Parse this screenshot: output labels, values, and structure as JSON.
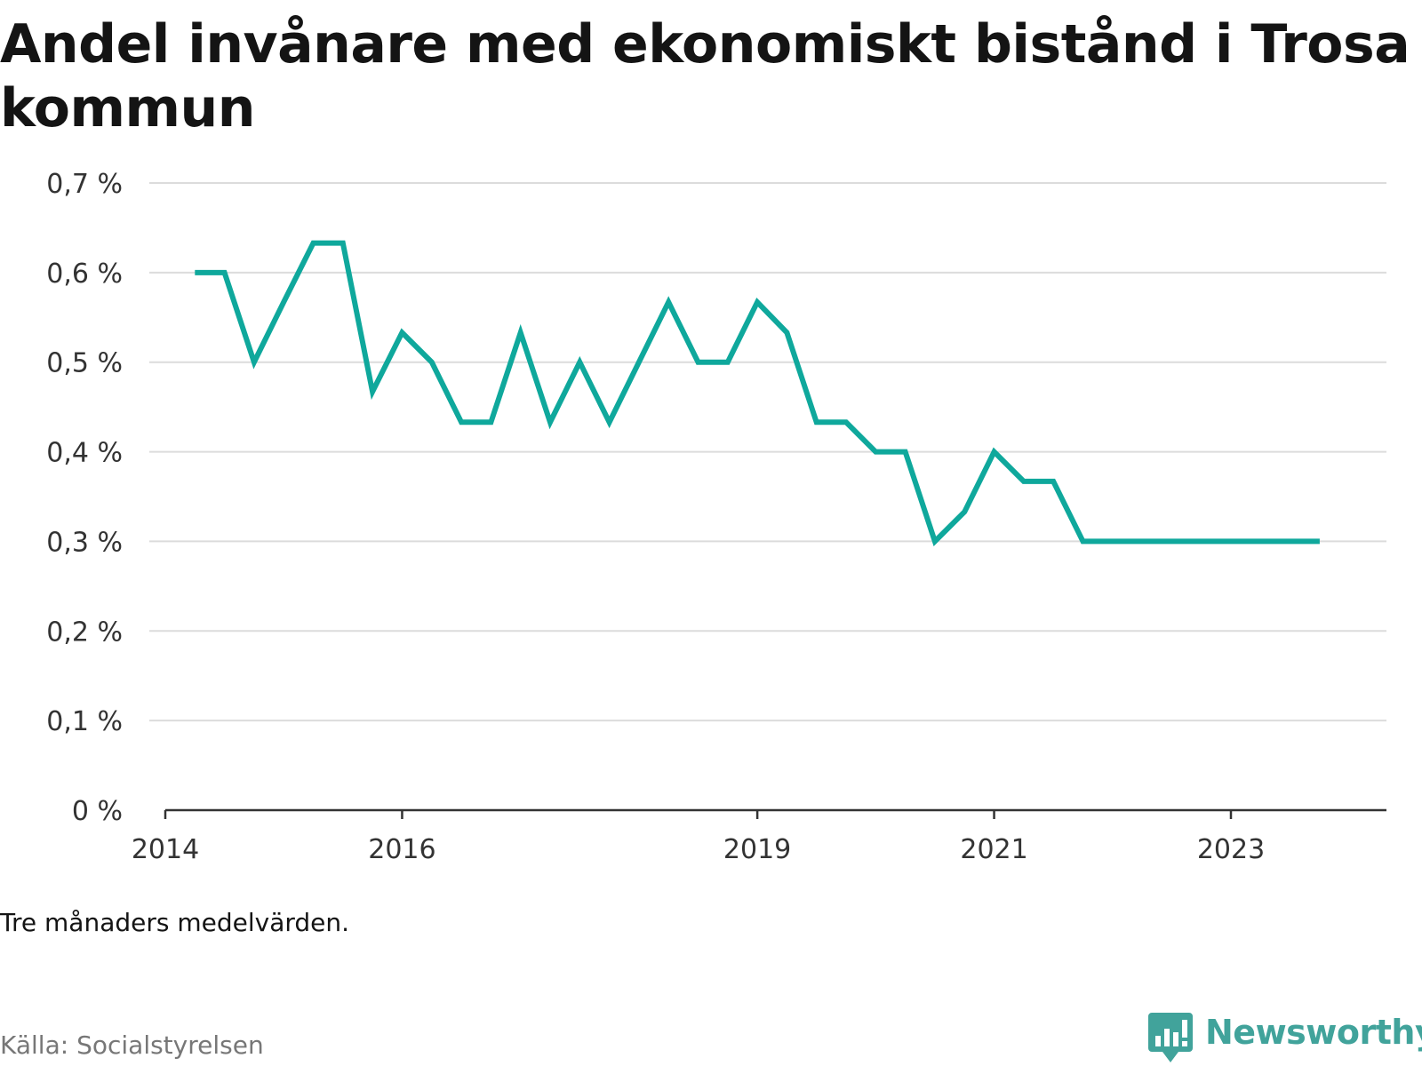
{
  "title": "Andel invånare med ekonomiskt bistånd i Trosa kommun",
  "note": "Tre månaders medelvärden.",
  "source": "Källa: Socialstyrelsen",
  "brand": {
    "name": "Newsworthy",
    "icon": "newsworthy-logo-icon",
    "color": "#41a39b"
  },
  "chart_data": {
    "type": "line",
    "line_color": "#0fa89c",
    "grid": true,
    "ylim": [
      0,
      0.7
    ],
    "y_ticks": [
      {
        "value": 0.0,
        "label": "0 %"
      },
      {
        "value": 0.1,
        "label": "0,1 %"
      },
      {
        "value": 0.2,
        "label": "0,2 %"
      },
      {
        "value": 0.3,
        "label": "0,3 %"
      },
      {
        "value": 0.4,
        "label": "0,4 %"
      },
      {
        "value": 0.5,
        "label": "0,5 %"
      },
      {
        "value": 0.6,
        "label": "0,6 %"
      },
      {
        "value": 0.7,
        "label": "0,7 %"
      }
    ],
    "x_ticks": [
      {
        "value": "2014-01",
        "label": "2014"
      },
      {
        "value": "2016-01",
        "label": "2016"
      },
      {
        "value": "2019-01",
        "label": "2019"
      },
      {
        "value": "2021-01",
        "label": "2021"
      },
      {
        "value": "2023-01",
        "label": "2023"
      }
    ],
    "series": [
      {
        "x": [
          "2014-04",
          "2014-07",
          "2014-10",
          "2015-01",
          "2015-04",
          "2015-07",
          "2015-10",
          "2016-01",
          "2016-04",
          "2016-07",
          "2016-10",
          "2017-01",
          "2017-04",
          "2017-07",
          "2017-10",
          "2018-01",
          "2018-04",
          "2018-07",
          "2018-10",
          "2019-01",
          "2019-04",
          "2019-07",
          "2019-10",
          "2020-01",
          "2020-04",
          "2020-07",
          "2020-10",
          "2021-01",
          "2021-04",
          "2021-07",
          "2021-10",
          "2022-01",
          "2022-04",
          "2022-07",
          "2022-10",
          "2023-01",
          "2023-04",
          "2023-07",
          "2023-10"
        ],
        "values": [
          0.6,
          0.6,
          0.5,
          0.567,
          0.633,
          0.633,
          0.467,
          0.533,
          0.5,
          0.433,
          0.433,
          0.533,
          0.433,
          0.5,
          0.433,
          0.5,
          0.567,
          0.5,
          0.5,
          0.567,
          0.533,
          0.433,
          0.433,
          0.4,
          0.4,
          0.3,
          0.333,
          0.4,
          0.367,
          0.367,
          0.3,
          0.3,
          0.3,
          0.3,
          0.3,
          0.3,
          0.3,
          0.3,
          0.3
        ]
      }
    ]
  }
}
